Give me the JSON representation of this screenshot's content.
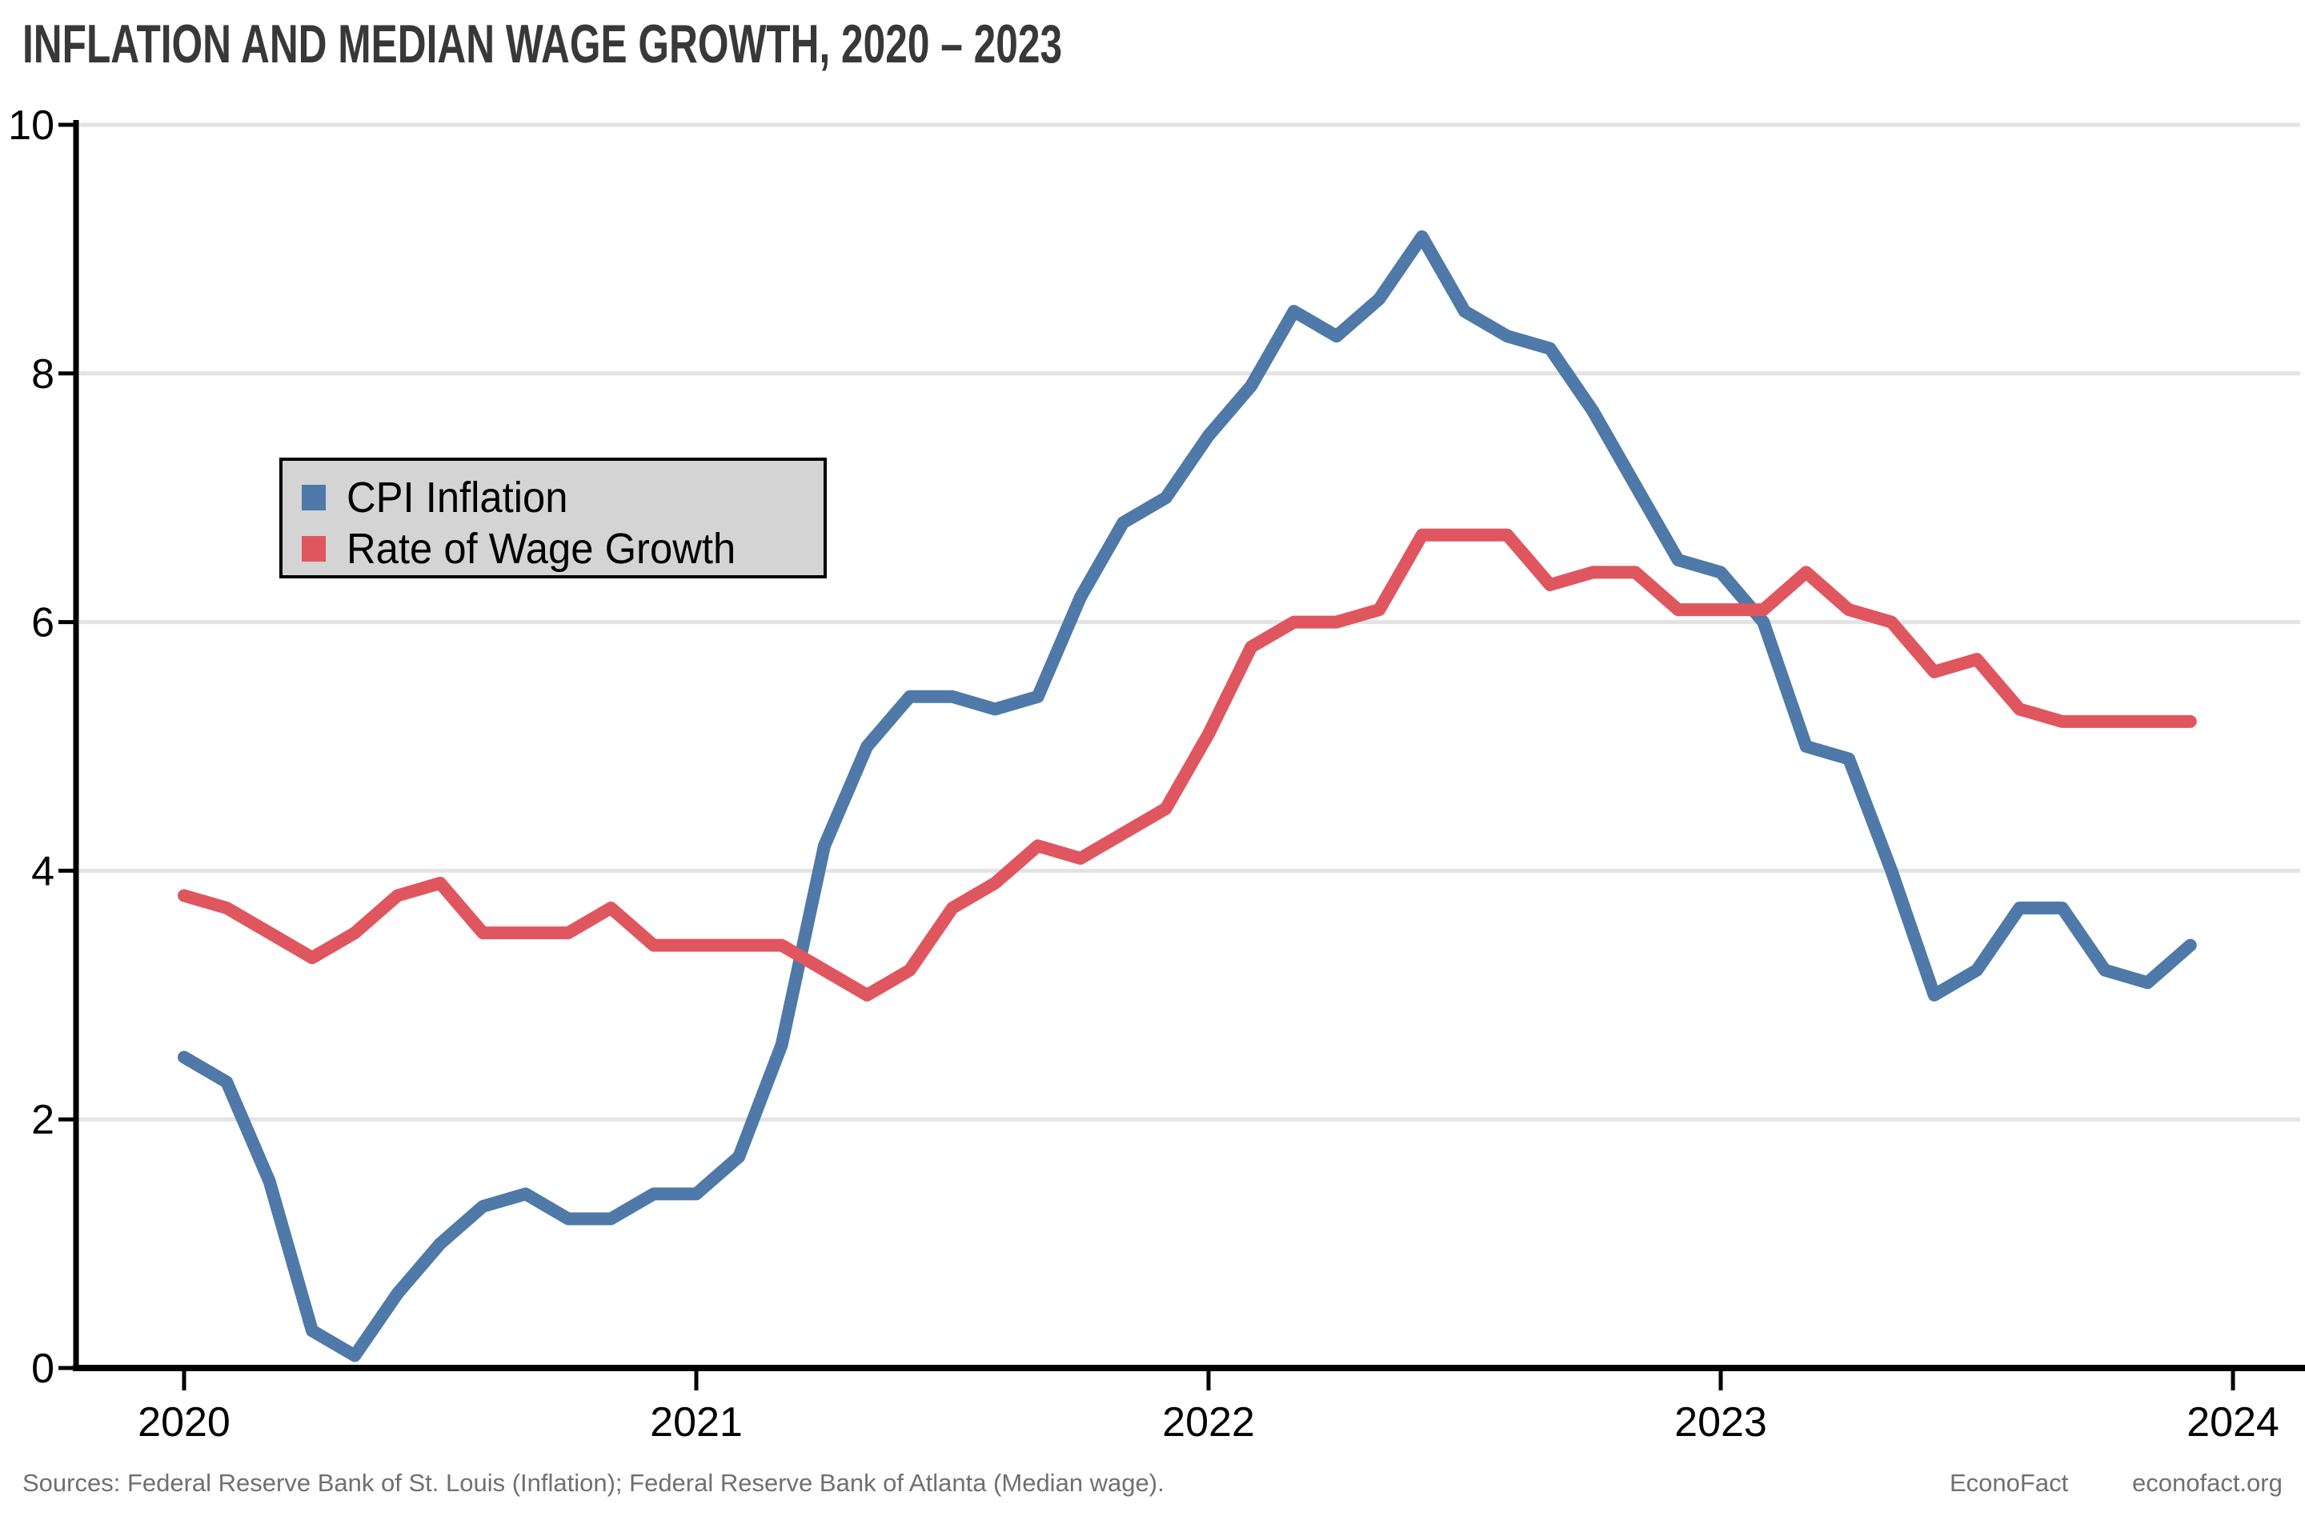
{
  "title": "INFLATION AND MEDIAN WAGE GROWTH, 2020 – 2023",
  "legend": {
    "items": [
      {
        "label": "CPI Inflation",
        "color": "#4e79a8"
      },
      {
        "label": "Rate of Wage Growth",
        "color": "#e0565f"
      }
    ]
  },
  "footer": {
    "sources": "Sources: Federal Reserve Bank of St. Louis (Inflation); Federal Reserve Bank of Atlanta (Median wage).",
    "brand": "EconoFact",
    "site": "econofact.org"
  },
  "chart_data": {
    "type": "line",
    "title": "INFLATION AND MEDIAN WAGE GROWTH, 2020 – 2023",
    "frequency": "monthly",
    "x_start": "2020-01",
    "x_end": "2023-12",
    "x_tick_labels": [
      "2020",
      "2021",
      "2022",
      "2023",
      "2024"
    ],
    "y_ticks": [
      0,
      2,
      4,
      6,
      8,
      10
    ],
    "ylim": [
      0,
      10
    ],
    "grid": true,
    "legend_position": "upper-left-inside",
    "series": [
      {
        "name": "CPI Inflation",
        "color": "#4e79a8",
        "values": [
          2.5,
          2.3,
          1.5,
          0.3,
          0.1,
          0.6,
          1.0,
          1.3,
          1.4,
          1.2,
          1.2,
          1.4,
          1.4,
          1.7,
          2.6,
          4.2,
          5.0,
          5.4,
          5.4,
          5.3,
          5.4,
          6.2,
          6.8,
          7.0,
          7.5,
          7.9,
          8.5,
          8.3,
          8.6,
          9.1,
          8.5,
          8.3,
          8.2,
          7.7,
          7.1,
          6.5,
          6.4,
          6.0,
          5.0,
          4.9,
          4.0,
          3.0,
          3.2,
          3.7,
          3.7,
          3.2,
          3.1,
          3.4
        ]
      },
      {
        "name": "Rate of Wage Growth",
        "color": "#e0565f",
        "values": [
          3.8,
          3.7,
          3.5,
          3.3,
          3.5,
          3.8,
          3.9,
          3.5,
          3.5,
          3.5,
          3.7,
          3.4,
          3.4,
          3.4,
          3.4,
          3.2,
          3.0,
          3.2,
          3.7,
          3.9,
          4.2,
          4.1,
          4.3,
          4.5,
          5.1,
          5.8,
          6.0,
          6.0,
          6.1,
          6.7,
          6.7,
          6.7,
          6.3,
          6.4,
          6.4,
          6.1,
          6.1,
          6.1,
          6.4,
          6.1,
          6.0,
          5.6,
          5.7,
          5.3,
          5.2,
          5.2,
          5.2,
          5.2
        ]
      }
    ]
  }
}
